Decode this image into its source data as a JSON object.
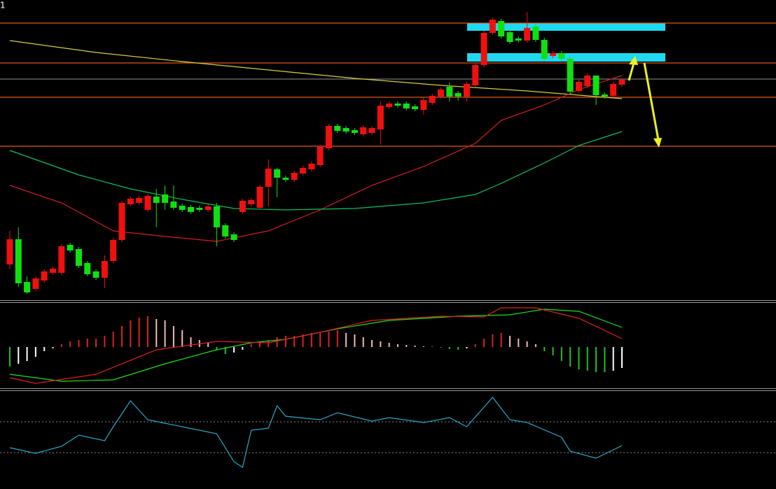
{
  "chart_data": [
    {
      "type": "candlestick",
      "label": "1",
      "ylim": [
        0,
        430
      ],
      "up_color": "#f01010",
      "down_color": "#10e010",
      "open": [
        52,
        88,
        27,
        17,
        29,
        40,
        40,
        80,
        74,
        54,
        42,
        33,
        57,
        87,
        138,
        140,
        130,
        149,
        152,
        142,
        136,
        134,
        133,
        130,
        135,
        108,
        95,
        127,
        138,
        133,
        163,
        188,
        176,
        173,
        182,
        188,
        194,
        218,
        250,
        247,
        244,
        238,
        240,
        245,
        277,
        282,
        282,
        278,
        273,
        283,
        292,
        306,
        297,
        292,
        308,
        337,
        383,
        400,
        384,
        375,
        372,
        392,
        373,
        350,
        354,
        346,
        300,
        307,
        322,
        295,
        293,
        309
      ],
      "high": [
        100,
        105,
        35,
        35,
        45,
        49,
        81,
        83,
        77,
        57,
        45,
        65,
        90,
        143,
        149,
        150,
        153,
        160,
        165,
        165,
        139,
        137,
        136,
        138,
        140,
        111,
        98,
        146,
        147,
        166,
        202,
        190,
        179,
        186,
        193,
        199,
        223,
        253,
        253,
        250,
        247,
        251,
        250,
        285,
        285,
        285,
        285,
        281,
        290,
        296,
        305,
        312,
        300,
        313,
        340,
        386,
        405,
        403,
        387,
        378,
        413,
        395,
        376,
        357,
        357,
        349,
        316,
        325,
        322,
        298,
        313,
        319
      ],
      "low": [
        45,
        20,
        10,
        14,
        26,
        37,
        37,
        69,
        47,
        35,
        30,
        18,
        54,
        84,
        135,
        137,
        127,
        105,
        130,
        130,
        127,
        124,
        127,
        127,
        78,
        89,
        84,
        124,
        135,
        130,
        135,
        148,
        170,
        170,
        179,
        185,
        191,
        215,
        240,
        239,
        237,
        235,
        237,
        223,
        274,
        276,
        272,
        271,
        266,
        280,
        289,
        285,
        286,
        285,
        305,
        334,
        380,
        375,
        367,
        369,
        369,
        370,
        343,
        347,
        343,
        296,
        297,
        304,
        280,
        289,
        290,
        306
      ],
      "close": [
        88,
        25,
        12,
        32,
        42,
        46,
        78,
        72,
        50,
        38,
        33,
        57,
        87,
        140,
        146,
        147,
        150,
        140,
        140,
        133,
        130,
        127,
        130,
        135,
        105,
        92,
        87,
        143,
        144,
        163,
        189,
        176,
        173,
        183,
        190,
        196,
        220,
        250,
        243,
        242,
        240,
        248,
        247,
        279,
        282,
        279,
        275,
        274,
        287,
        293,
        302,
        292,
        292,
        310,
        337,
        383,
        402,
        378,
        370,
        372,
        390,
        373,
        346,
        354,
        346,
        299,
        313,
        322,
        294,
        292,
        310,
        316
      ],
      "series": [
        {
          "color": "#d8d040",
          "x": [
            0,
            10,
            20,
            30,
            40,
            50,
            60,
            71
          ],
          "values": [
            372,
            355,
            342,
            330,
            318,
            308,
            300,
            289
          ]
        },
        {
          "color": "#d02020",
          "x": [
            0,
            6,
            12,
            18,
            24,
            30,
            36,
            42,
            48,
            54,
            57,
            62,
            66,
            71
          ],
          "values": [
            165,
            140,
            100,
            92,
            85,
            100,
            130,
            165,
            192,
            225,
            258,
            280,
            302,
            322
          ]
        },
        {
          "color": "#10c060",
          "x": [
            0,
            8,
            14,
            20,
            26,
            32,
            40,
            48,
            54,
            57,
            62,
            66,
            71
          ],
          "values": [
            215,
            180,
            160,
            145,
            132,
            130,
            132,
            140,
            152,
            168,
            197,
            222,
            242
          ]
        }
      ],
      "levels": [
        {
          "value": 397,
          "color": "#e0561c"
        },
        {
          "value": 340,
          "color": "#e0561c"
        },
        {
          "value": 317,
          "color": "#777777"
        },
        {
          "value": 291,
          "color": "#e0561c"
        },
        {
          "value": 221,
          "color": "#e0561c"
        }
      ],
      "zones": [
        [
          386,
          397
        ],
        [
          342,
          354
        ]
      ],
      "zone_color": "#20d8f0"
    },
    {
      "type": "macd",
      "ylim": [
        -59,
        66
      ],
      "values": [
        -28,
        -24,
        -20,
        -14,
        -6,
        -2,
        4,
        8,
        10,
        12,
        12,
        16,
        22,
        30,
        38,
        42,
        44,
        40,
        38,
        30,
        24,
        14,
        10,
        6,
        -4,
        -10,
        -8,
        -4,
        4,
        8,
        10,
        14,
        16,
        16,
        18,
        20,
        20,
        22,
        24,
        20,
        18,
        14,
        10,
        8,
        6,
        4,
        3,
        2,
        1,
        1,
        -1,
        -3,
        -4,
        -2,
        4,
        12,
        18,
        20,
        16,
        12,
        8,
        4,
        -6,
        -12,
        -20,
        -28,
        -32,
        -34,
        -36,
        -36,
        -34,
        -30
      ],
      "series": [
        {
          "color": "#20e020",
          "x": [
            0,
            6,
            12,
            18,
            24,
            28,
            32,
            38,
            44,
            52,
            58,
            62,
            66,
            71
          ],
          "values": [
            -39,
            -49,
            -47,
            -24,
            -4,
            6,
            11,
            26,
            38,
            44,
            46,
            54,
            51,
            28
          ]
        },
        {
          "color": "#e02020",
          "x": [
            0,
            3,
            10,
            17,
            24,
            30,
            36,
            42,
            50,
            55,
            57,
            61,
            66,
            71
          ],
          "values": [
            -44,
            -52,
            -39,
            -4,
            8,
            6,
            21,
            38,
            44,
            43,
            56,
            56,
            41,
            12
          ]
        }
      ]
    },
    {
      "type": "line",
      "ylim": [
        -74,
        68
      ],
      "hlines": [
        22,
        -22
      ],
      "series": [
        {
          "color": "#2aa8c8",
          "x": [
            0,
            3,
            6,
            8,
            11,
            12,
            14,
            16,
            18,
            22,
            24,
            26,
            27,
            28,
            30,
            31,
            32,
            36,
            38,
            42,
            44,
            48,
            51,
            53,
            56,
            58,
            60,
            64,
            65,
            68,
            71
          ],
          "values": [
            -15,
            -23,
            -13,
            3,
            -5,
            15,
            52,
            25,
            20,
            10,
            5,
            -35,
            -43,
            10,
            13,
            45,
            30,
            25,
            35,
            23,
            28,
            21,
            28,
            15,
            57,
            25,
            21,
            0,
            -20,
            -30,
            -12
          ]
        }
      ]
    }
  ]
}
